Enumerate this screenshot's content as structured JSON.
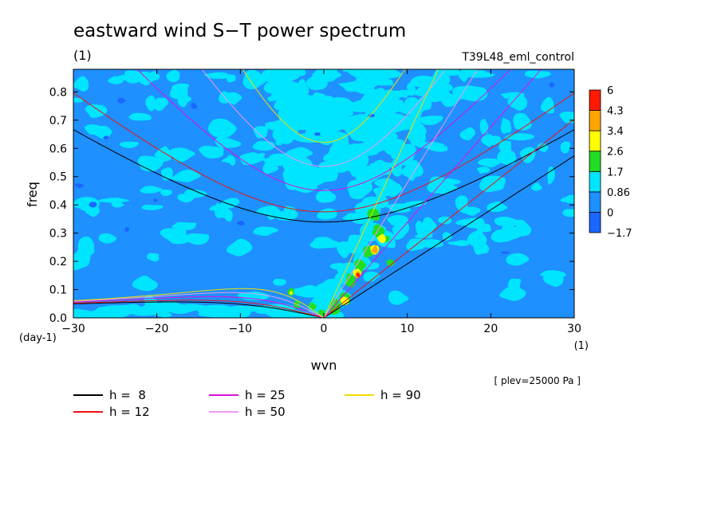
{
  "chart_data": {
    "type": "heatmap",
    "title": "eastward wind S−T power spectrum",
    "subtitle": "(1)",
    "run_label": "T39L48_eml_control",
    "xlabel": "wvn",
    "x_unit": "(1)",
    "ylabel": "freq",
    "y_unit": "(day-1)",
    "xlim": [
      -30,
      30
    ],
    "ylim": [
      0,
      0.88
    ],
    "x_ticks": [
      -30,
      -20,
      -10,
      0,
      10,
      20,
      30
    ],
    "x_tick_labels": [
      "−30",
      "−20",
      "−10",
      "0",
      "10",
      "20",
      "30"
    ],
    "y_ticks": [
      0.0,
      0.1,
      0.2,
      0.3,
      0.4,
      0.5,
      0.6,
      0.7,
      0.8
    ],
    "y_tick_labels": [
      "0.0",
      "0.1",
      "0.2",
      "0.3",
      "0.4",
      "0.5",
      "0.6",
      "0.7",
      "0.8"
    ],
    "plev_note": "[ plev=25000 Pa ]",
    "colorbar": {
      "levels": [
        "6",
        "4.3",
        "3.4",
        "2.6",
        "1.7",
        "0.86",
        "0",
        "−1.7"
      ],
      "colors": [
        "#1a66ff",
        "#1e90ff",
        "#00e5ff",
        "#22dd22",
        "#ffff00",
        "#ffa500",
        "#ff1a00"
      ]
    },
    "dispersion_curves": [
      {
        "name": "h =  8",
        "h": 8,
        "color": "#000000"
      },
      {
        "name": "h = 12",
        "h": 12,
        "color": "#ee1111"
      },
      {
        "name": "h = 25",
        "h": 25,
        "color": "#dd11dd"
      },
      {
        "name": "h = 50",
        "h": 50,
        "color": "#ee99ee"
      },
      {
        "name": "h = 90",
        "h": 90,
        "color": "#eedd00"
      }
    ],
    "grid": false
  }
}
